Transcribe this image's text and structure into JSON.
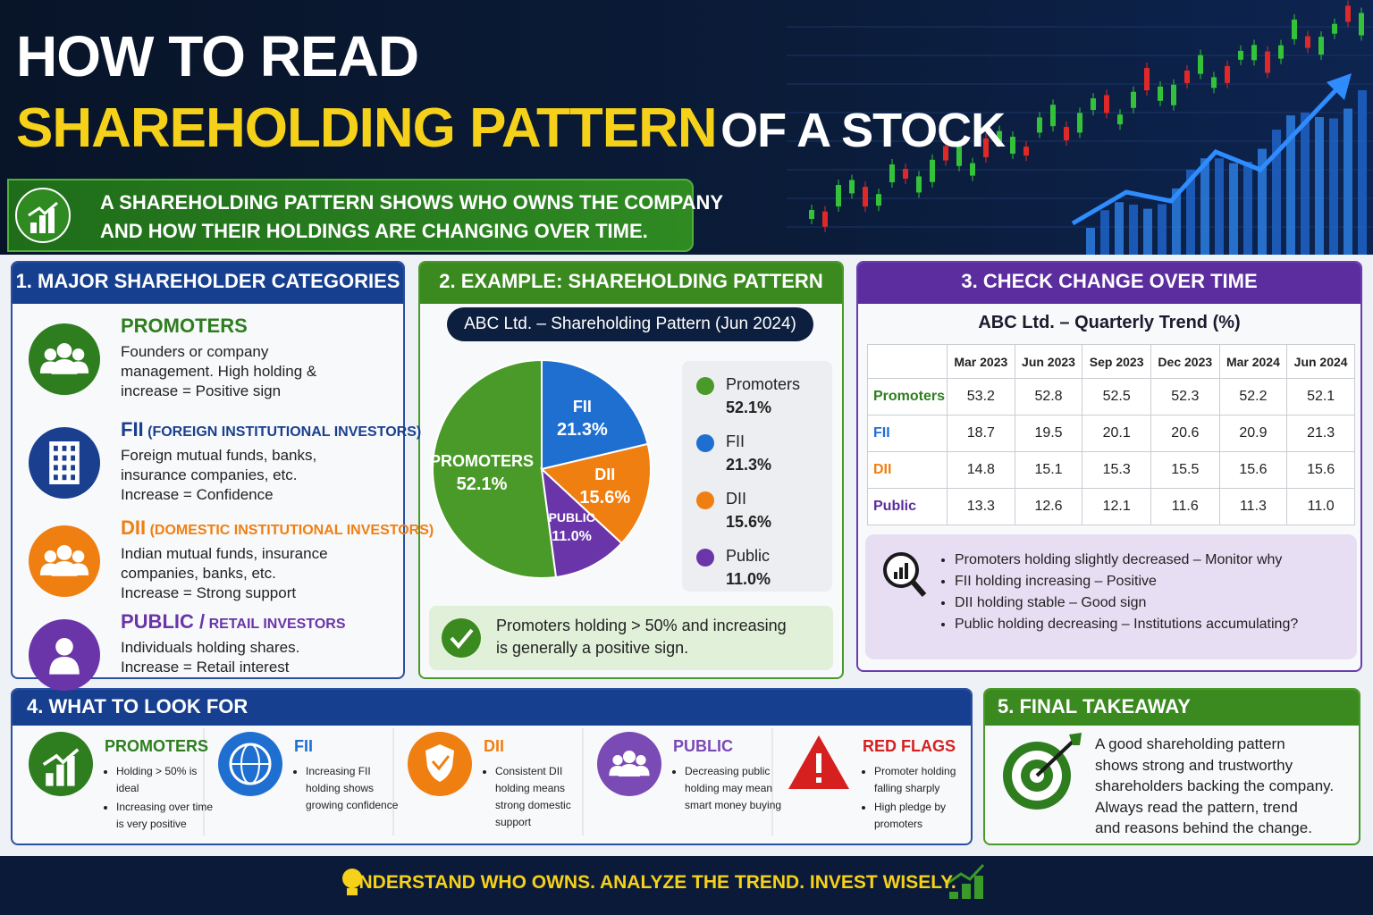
{
  "header": {
    "title_line1": "HOW TO READ",
    "title_highlight": "SHAREHOLDING PATTERN",
    "title_rest": "OF A STOCK",
    "subtitle_lines": [
      "A SHAREHOLDING PATTERN SHOWS WHO OWNS THE COMPANY",
      "AND HOW THEIR HOLDINGS ARE CHANGING OVER TIME."
    ]
  },
  "categories_panel": {
    "title": "1. MAJOR SHAREHOLDER CATEGORIES",
    "items": [
      {
        "name": "PROMOTERS",
        "lines": [
          "Founders or company",
          "management. High holding &",
          "increase = Positive sign"
        ]
      },
      {
        "name": "FII",
        "detail": "(FOREIGN INSTITUTIONAL INVESTORS)",
        "lines": [
          "Foreign mutual funds, banks,",
          "insurance companies, etc.",
          "Increase = Confidence"
        ]
      },
      {
        "name": "DII",
        "detail": "(DOMESTIC INSTITUTIONAL INVESTORS)",
        "lines": [
          "Indian mutual funds, insurance",
          "companies, banks, etc.",
          "Increase = Strong support"
        ]
      },
      {
        "name": "PUBLIC /",
        "detail": "RETAIL INVESTORS",
        "lines": [
          "Individuals holding shares.",
          "Increase = Retail interest"
        ]
      }
    ]
  },
  "example_panel": {
    "title": "2. EXAMPLE: SHAREHOLDING PATTERN",
    "note_lines": [
      "Promoters holding > 50% and increasing",
      "is generally a positive sign."
    ]
  },
  "chart_data": {
    "type": "pie",
    "title": "ABC Ltd. – Shareholding Pattern (Jun 2024)",
    "categories": [
      "Promoters",
      "FII",
      "DII",
      "Public"
    ],
    "slice_labels": [
      "PROMOTERS",
      "FII",
      "DII",
      "PUBLIC"
    ],
    "values": [
      52.1,
      21.3,
      15.6,
      11.0
    ],
    "value_labels": [
      "52.1%",
      "21.3%",
      "15.6%",
      "11.0%"
    ],
    "colors": [
      "#4a9a2a",
      "#1f6fd1",
      "#f07f12",
      "#6a35a8"
    ]
  },
  "trend_panel": {
    "title": "3. CHECK CHANGE OVER TIME",
    "table_title": "ABC Ltd. – Quarterly Trend (%)",
    "columns": [
      "Mar 2023",
      "Jun 2023",
      "Sep 2023",
      "Dec 2023",
      "Mar 2024",
      "Jun 2024"
    ],
    "rows": [
      {
        "label": "Promoters",
        "cells": [
          "53.2",
          "52.8",
          "52.5",
          "52.3",
          "52.2",
          "52.1"
        ]
      },
      {
        "label": "FII",
        "cells": [
          "18.7",
          "19.5",
          "20.1",
          "20.6",
          "20.9",
          "21.3"
        ]
      },
      {
        "label": "DII",
        "cells": [
          "14.8",
          "15.1",
          "15.3",
          "15.5",
          "15.6",
          "15.6"
        ]
      },
      {
        "label": "Public",
        "cells": [
          "13.3",
          "12.6",
          "12.1",
          "11.6",
          "11.3",
          "11.0"
        ]
      }
    ],
    "insights": [
      "Promoters holding slightly decreased – Monitor why",
      "FII holding increasing – Positive",
      "DII holding stable – Good sign",
      "Public holding decreasing – Institutions accumulating?"
    ]
  },
  "look_for_panel": {
    "title": "4. WHAT TO LOOK FOR",
    "items": [
      {
        "name": "PROMOTERS",
        "points": [
          "Holding > 50% is ideal",
          "Increasing over time is very positive"
        ]
      },
      {
        "name": "FII",
        "points": [
          "Increasing FII holding shows growing confidence"
        ]
      },
      {
        "name": "DII",
        "points": [
          "Consistent DII holding means strong domestic support"
        ]
      },
      {
        "name": "PUBLIC",
        "points": [
          "Decreasing public holding may mean smart money buying"
        ]
      },
      {
        "name": "RED FLAGS",
        "points": [
          "Promoter holding falling sharply",
          "High pledge by promoters"
        ]
      }
    ]
  },
  "takeaway_panel": {
    "title": "5. FINAL TAKEAWAY",
    "lines": [
      "A good shareholding pattern",
      "shows strong and trustworthy",
      "shareholders backing the company.",
      "Always read the pattern, trend",
      "and reasons behind the change."
    ]
  },
  "footer": {
    "text": "UNDERSTAND WHO OWNS. ANALYZE THE TREND. INVEST WISELY."
  }
}
